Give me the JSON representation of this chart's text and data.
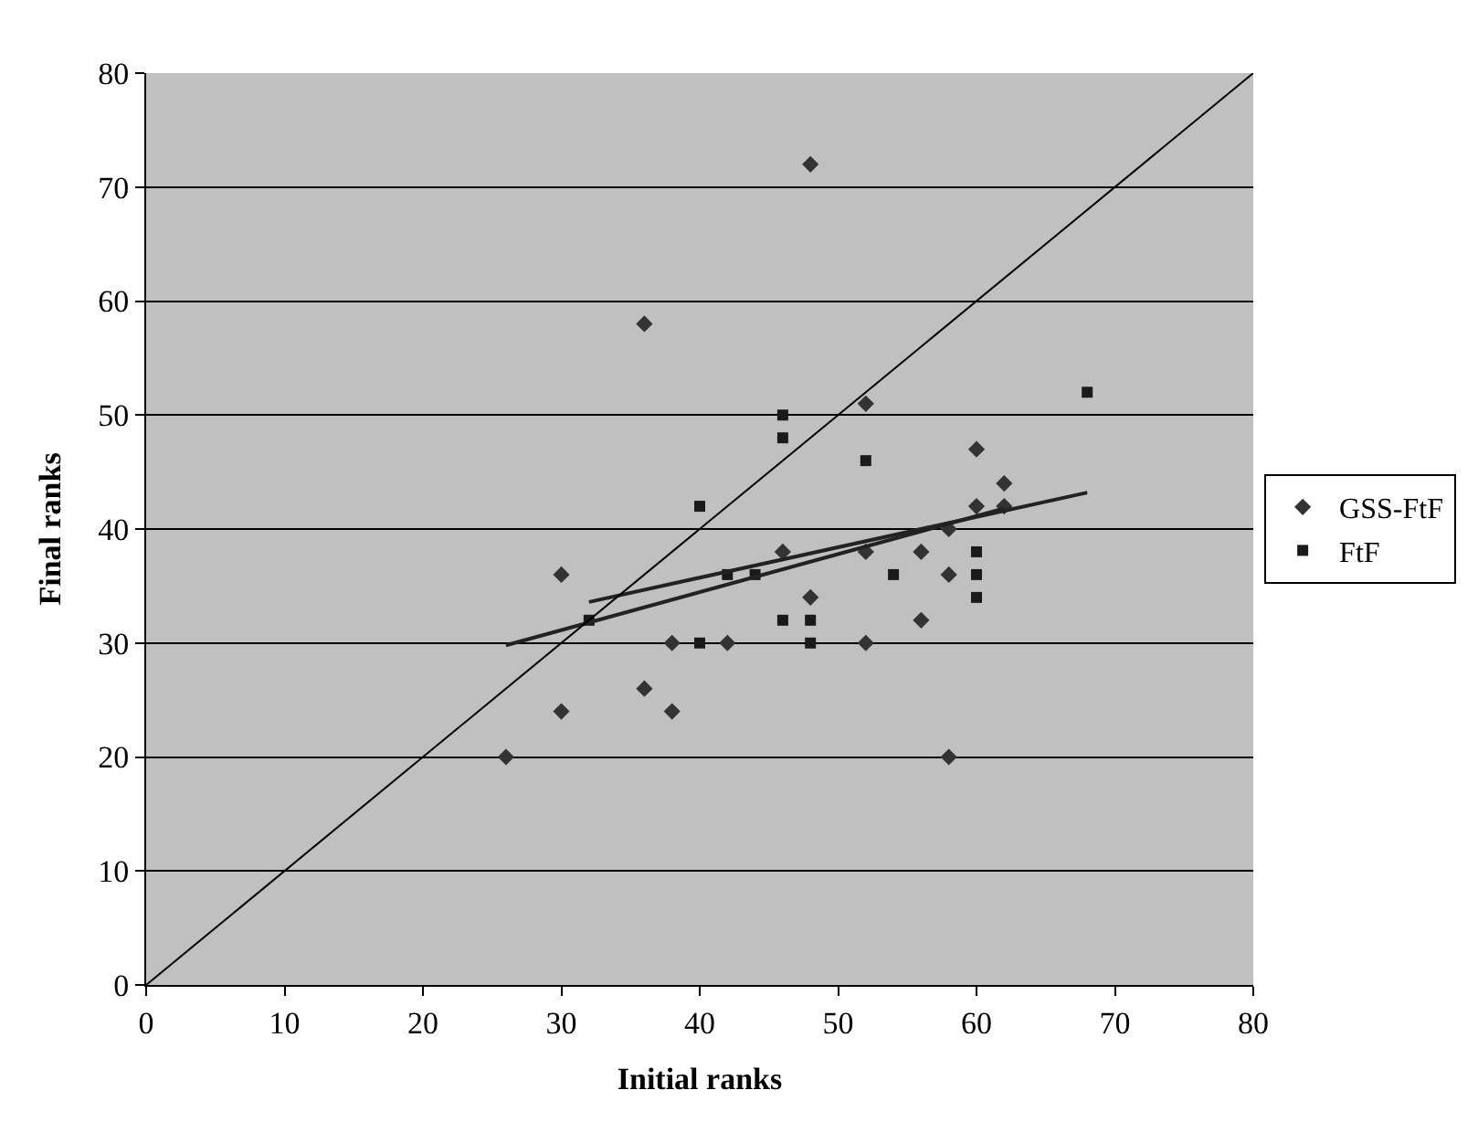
{
  "chart_data": {
    "type": "scatter",
    "xlabel": "Initial ranks",
    "ylabel": "Final ranks",
    "xlim": [
      0,
      80
    ],
    "ylim": [
      0,
      80
    ],
    "xticks": [
      0,
      10,
      20,
      30,
      40,
      50,
      60,
      70,
      80
    ],
    "yticks": [
      0,
      10,
      20,
      30,
      40,
      50,
      60,
      70,
      80
    ],
    "grid": "y",
    "legend": "right",
    "series": [
      {
        "name": "GSS-FtF",
        "color": "#333333",
        "marker": "diamond",
        "x": [
          26,
          30,
          30,
          36,
          36,
          38,
          38,
          42,
          46,
          48,
          48,
          52,
          52,
          52,
          56,
          56,
          58,
          58,
          58,
          60,
          60,
          62,
          62
        ],
        "values": [
          20,
          36,
          24,
          58,
          26,
          30,
          24,
          30,
          38,
          72,
          34,
          51,
          38,
          30,
          38,
          32,
          40,
          36,
          20,
          47,
          42,
          44,
          42
        ]
      },
      {
        "name": "FtF",
        "color": "#1a1a1a",
        "marker": "square",
        "x": [
          32,
          40,
          40,
          42,
          44,
          46,
          46,
          46,
          48,
          48,
          52,
          54,
          60,
          60,
          60,
          68
        ],
        "values": [
          32,
          42,
          30,
          36,
          36,
          50,
          48,
          32,
          32,
          30,
          46,
          36,
          38,
          36,
          34,
          52
        ]
      },
      {
        "type": "line",
        "color": "#222222",
        "marker": "none",
        "x": [
          26,
          62
        ],
        "values": [
          29.8,
          41.8
        ]
      },
      {
        "type": "line",
        "color": "#222222",
        "marker": "none",
        "x": [
          32,
          68
        ],
        "values": [
          33.6,
          43.2
        ]
      },
      {
        "type": "line",
        "color": "#000000",
        "marker": "none",
        "x": [
          0,
          80
        ],
        "values": [
          0,
          80
        ]
      }
    ]
  }
}
